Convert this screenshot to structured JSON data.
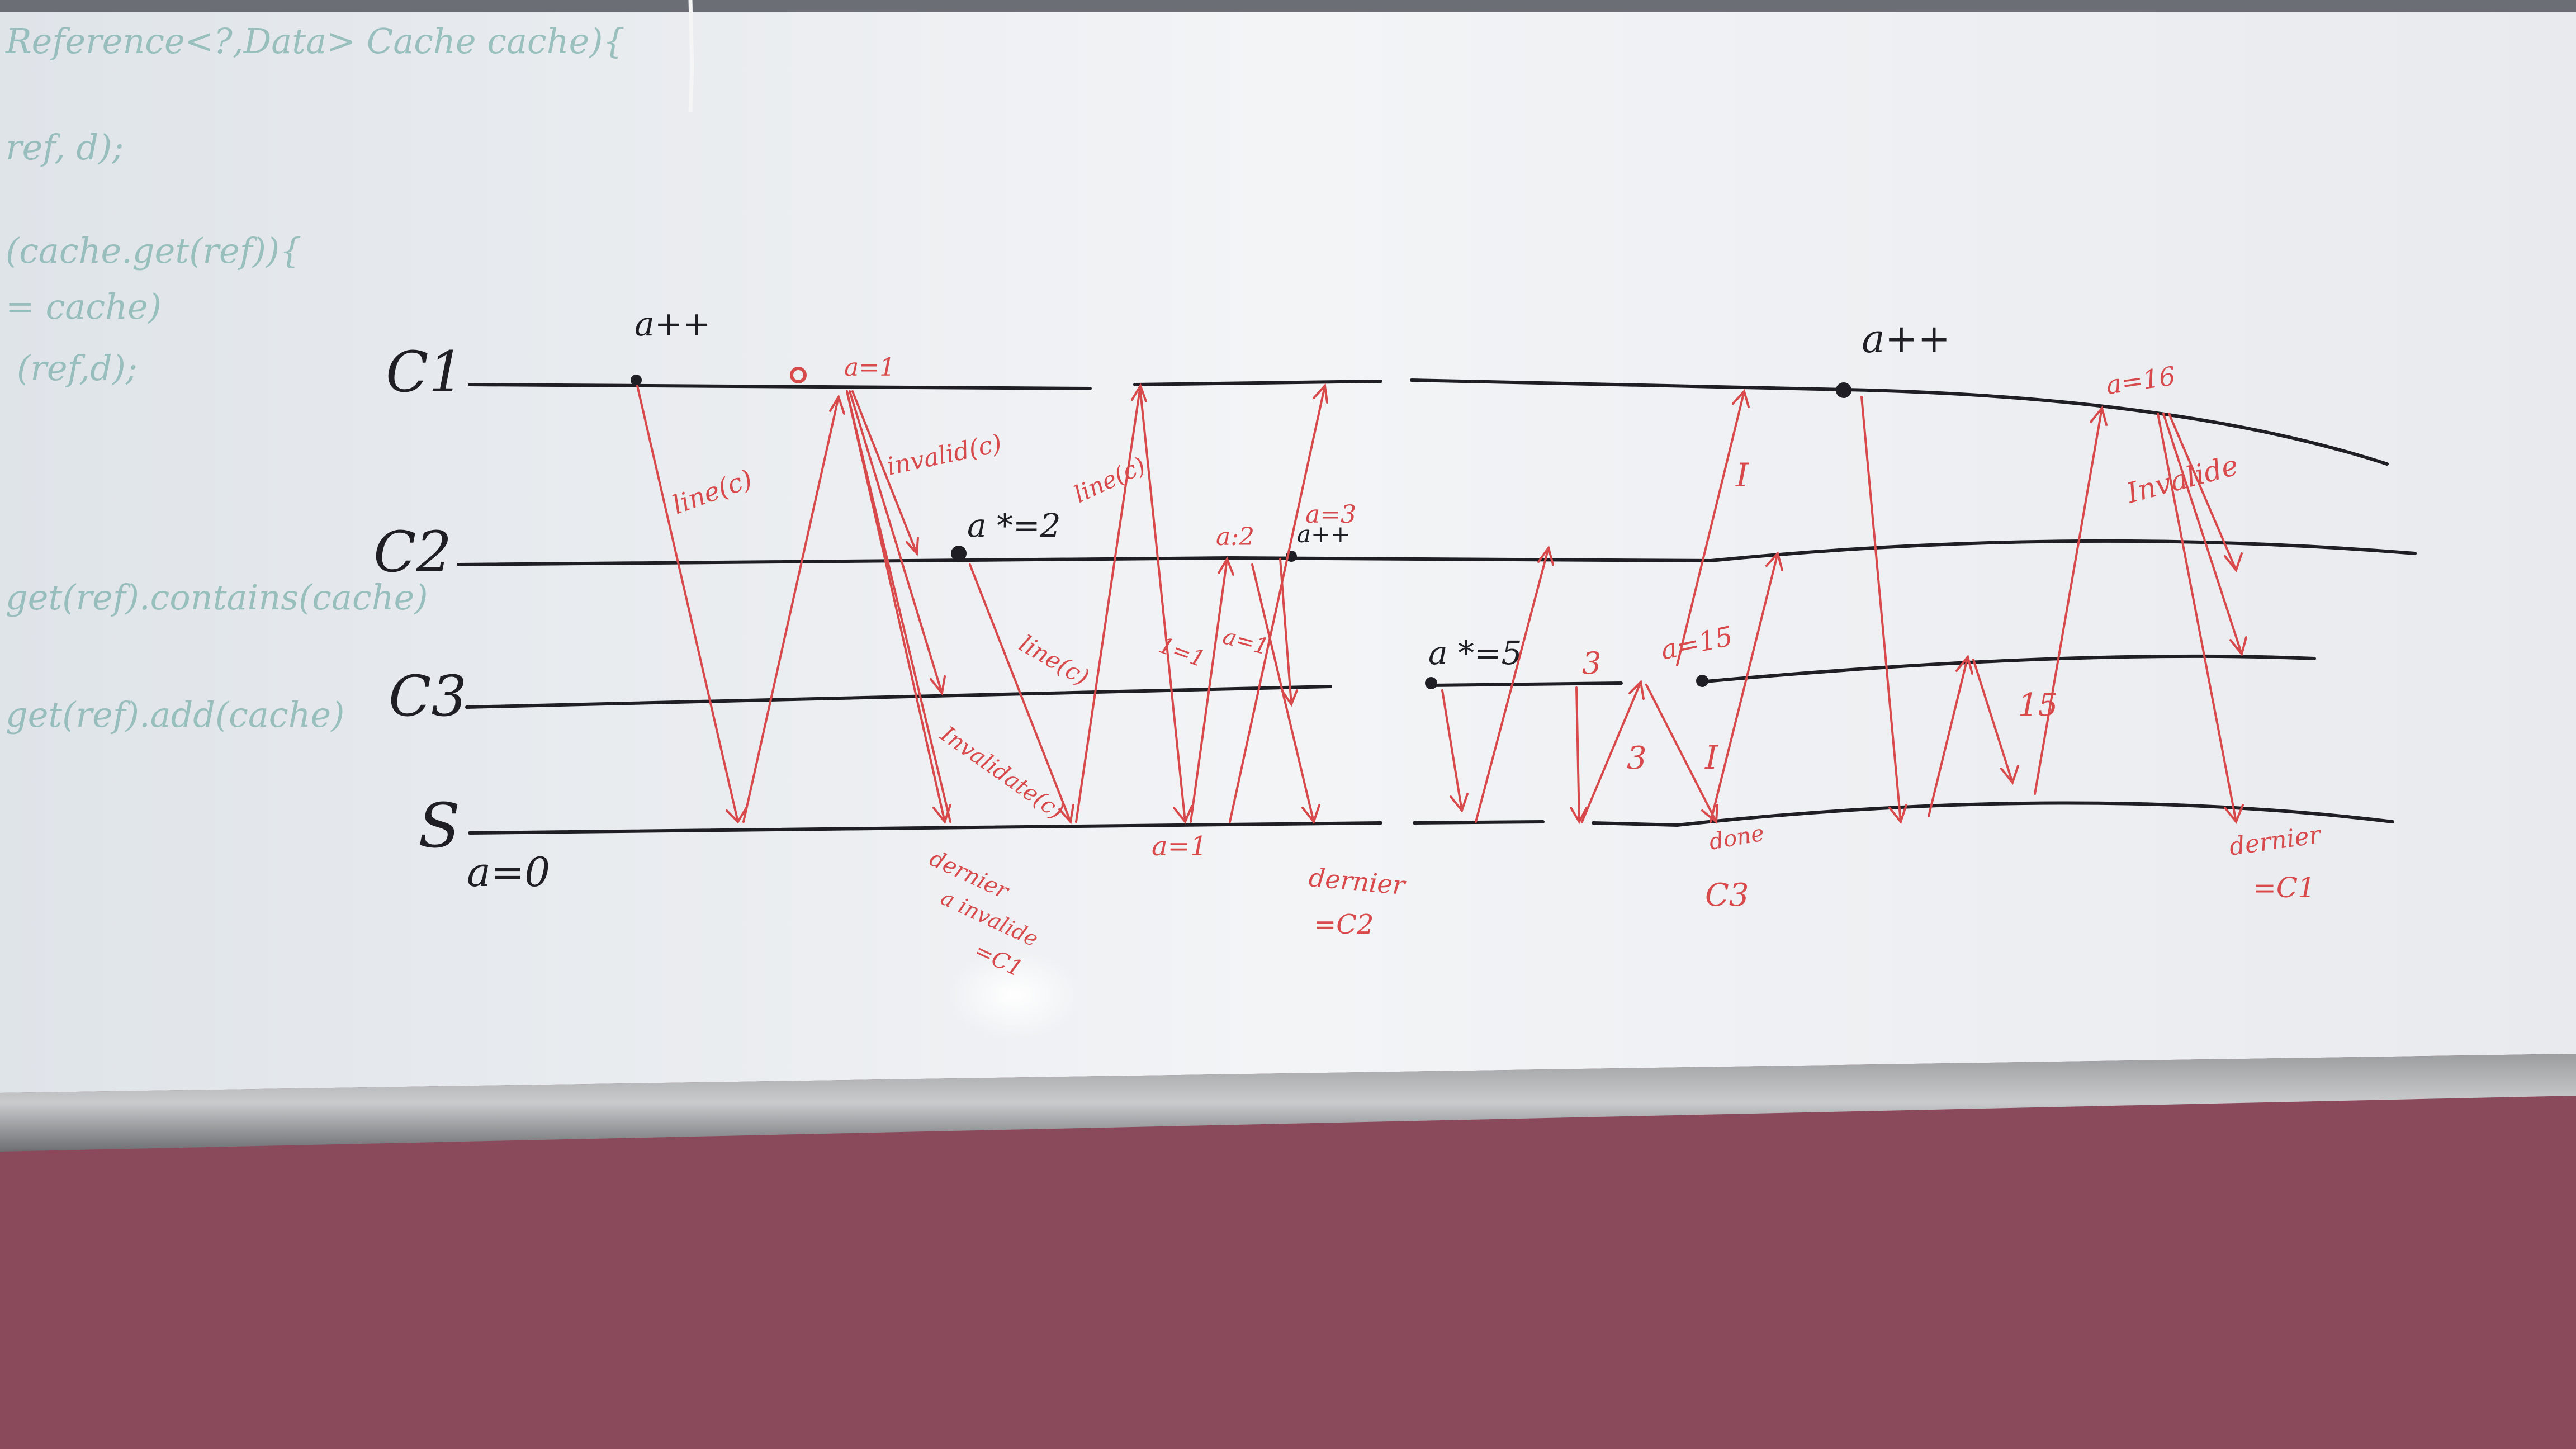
{
  "colors": {
    "wall": "#8a4a5c",
    "board": "#f2f3f5",
    "black_marker": "#1e1e24",
    "red_marker": "#d8494b",
    "faded_teal": "#7fb2ad"
  },
  "process_labels": [
    "C1",
    "C2",
    "C3",
    "S"
  ],
  "initial_value": "a=0",
  "black_notes": {
    "c1_inc_1": "a++",
    "c2_write": "a *=2",
    "c2_inc": "a++",
    "c3_write": "a *=5",
    "c1_inc_2": "a++"
  },
  "red_notes": {
    "a_eq_1_top": "a=1",
    "line_c1": "line(c)",
    "invalid_c": "invalid(c)",
    "line_c2": "line(c)",
    "line_c3": "line(c)",
    "invalidate_c": "Invalidate(c)",
    "one_arrow": "1=1",
    "a_eq_1_mid": "a=1",
    "a_eq_2": "a:2",
    "a_eq_3": "a=3",
    "a_eq_1_s": "a=1",
    "dernier_1": "dernier",
    "a_invalide": "a invalide",
    "eq_c1_1": "=C1",
    "dernier_2": "dernier",
    "eq_c2": "=C2",
    "three_a": "3",
    "three_b": "3",
    "a_eq_15": "a=15",
    "I_1": "I",
    "I_2": "I",
    "fifteen": "15",
    "done": "done",
    "c3": "C3",
    "a_eq_16": "a=16",
    "invalide": "Invalide",
    "dernier_3": "dernier",
    "eq_c1_2": "=C1"
  },
  "faded_code": [
    "Reference<?,Data> Cache cache){",
    "ref, d);",
    "(cache.get(ref)){",
    "= cache)",
    "(ref,d);",
    "get(ref).contains(cache)",
    "get(ref).add(cache)"
  ]
}
